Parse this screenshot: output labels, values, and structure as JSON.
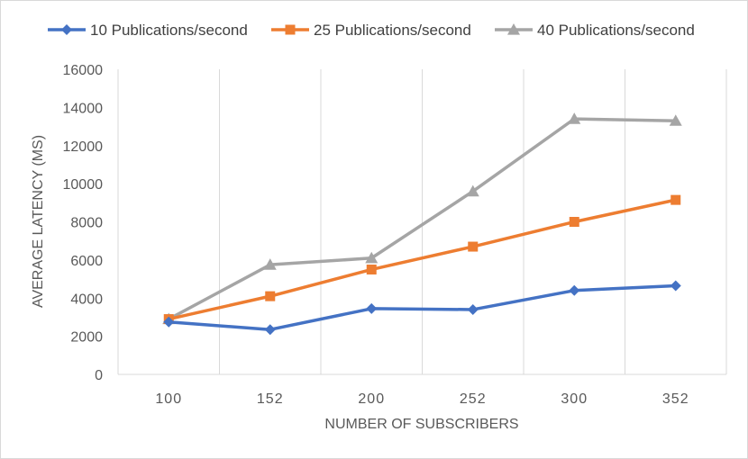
{
  "chart_data": {
    "type": "line",
    "title": "",
    "xlabel": "NUMBER OF SUBSCRIBERS",
    "ylabel": "AVERAGE LATENCY (MS)",
    "categories": [
      "100",
      "152",
      "200",
      "252",
      "300",
      "352"
    ],
    "ylim": [
      0,
      16000
    ],
    "yticks": [
      0,
      2000,
      4000,
      6000,
      8000,
      10000,
      12000,
      14000,
      16000
    ],
    "grid": "vertical",
    "legend_position": "top",
    "series": [
      {
        "name": "10 Publications/second",
        "color": "#4472c4",
        "marker": "diamond",
        "values": [
          2750,
          2350,
          3450,
          3400,
          4400,
          4650
        ]
      },
      {
        "name": "25 Publications/second",
        "color": "#ed7d31",
        "marker": "square",
        "values": [
          2900,
          4100,
          5500,
          6700,
          8000,
          9150
        ]
      },
      {
        "name": "40 Publications/second",
        "color": "#a5a5a5",
        "marker": "triangle",
        "values": [
          2900,
          5750,
          6100,
          9600,
          13400,
          13300
        ]
      }
    ]
  }
}
